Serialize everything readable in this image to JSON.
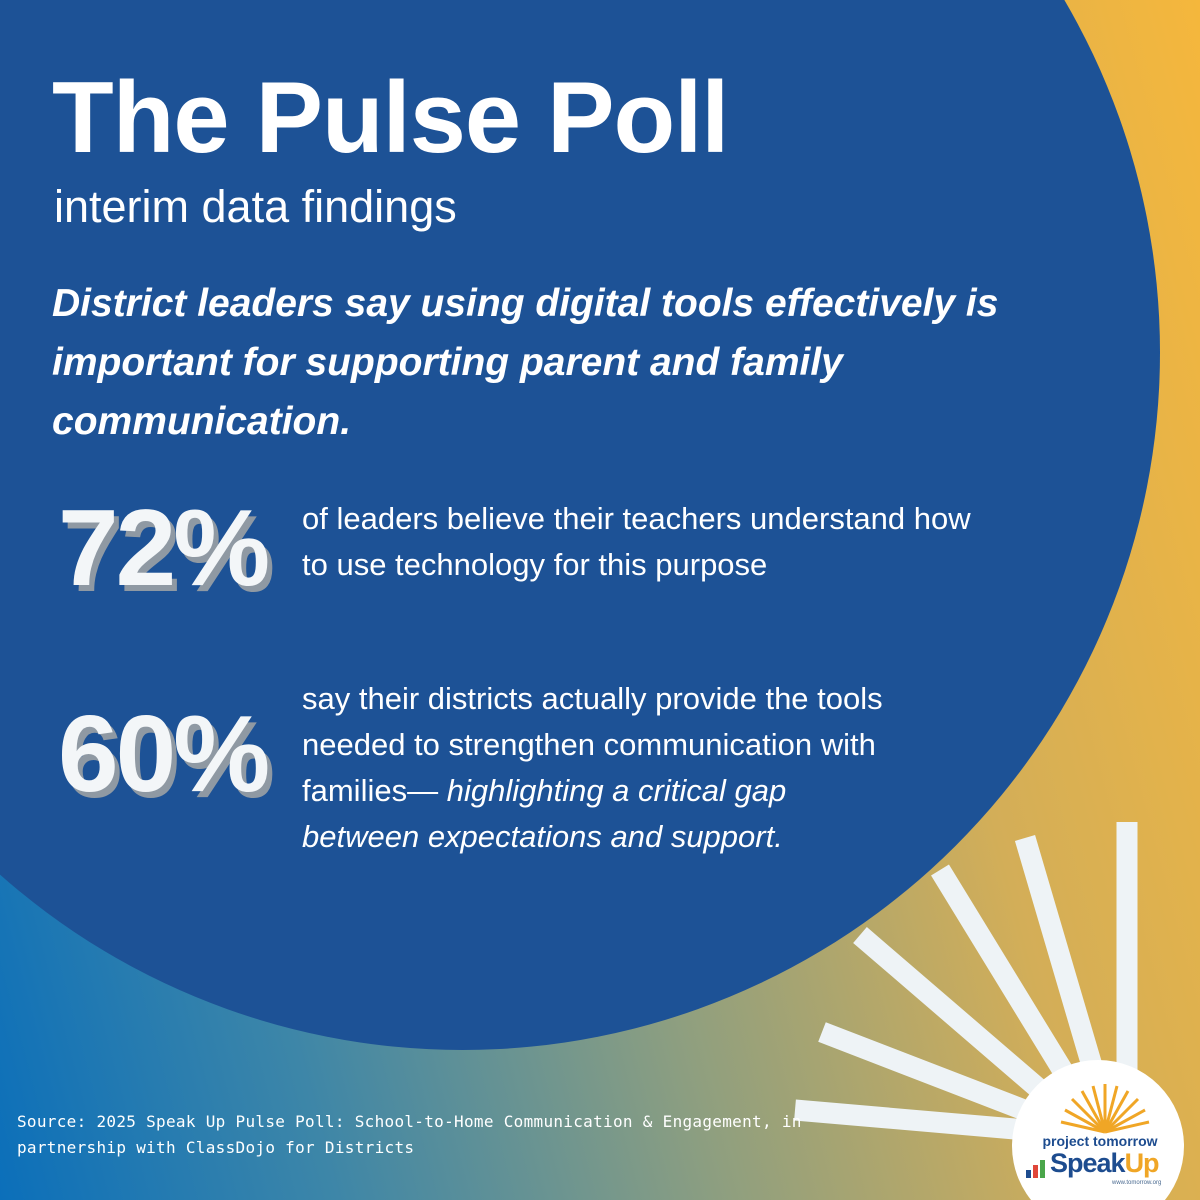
{
  "title": "The Pulse Poll",
  "subtitle": "interim data findings",
  "headline": "District leaders say using digital tools effectively is important for supporting parent and family communication.",
  "stats": [
    {
      "number": "72%",
      "text": "of leaders believe their teachers understand how to use technology for this purpose",
      "italic_text": ""
    },
    {
      "number": "60%",
      "text": "say their districts actually provide the tools needed to strengthen communication with families—",
      "italic_text": "highlighting a critical gap between expectations and support."
    }
  ],
  "source": "Source: 2025 Speak Up Pulse Poll: School-to-Home Communication & Engagement, in partnership with ClassDojo for Districts",
  "logo": {
    "line1": "project tomorrow",
    "speak": "Speak",
    "up": "Up",
    "url": "www.tomorrow.org"
  },
  "colors": {
    "circle_blue": "#1d5296",
    "accent_gold": "#f5b73c",
    "logo_blue": "#1d4c8f"
  }
}
